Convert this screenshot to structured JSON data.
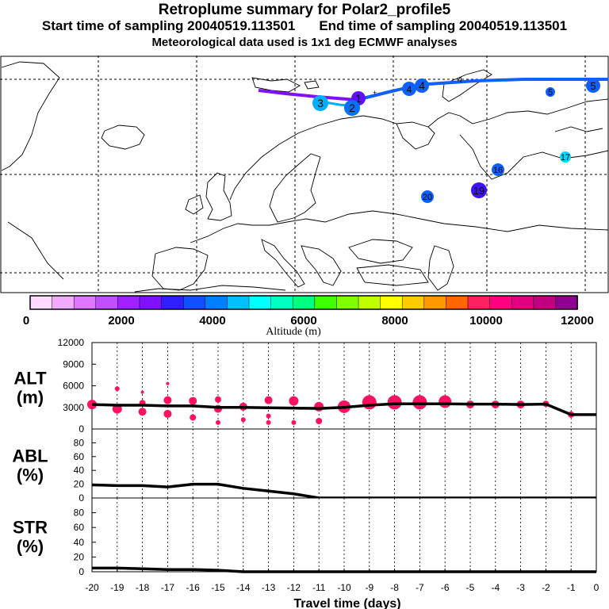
{
  "header": {
    "title": "Retroplume summary for Polar2_profile5",
    "start_label": "Start time of sampling 20040519.113501",
    "end_label": "End time of sampling 20040519.113501",
    "met_label": "Meteorological data used is 1x1 deg ECMWF analyses"
  },
  "map": {
    "region": "Europe and North Atlantic",
    "plume_numbers": [
      "1",
      "2",
      "3",
      "4",
      "4",
      "4",
      "5",
      "5",
      "16",
      "17",
      "19",
      "20"
    ]
  },
  "colorbar": {
    "label": "Altitude (m)",
    "ticks": [
      "0",
      "2000",
      "4000",
      "6000",
      "8000",
      "10000",
      "12000"
    ],
    "colors": [
      "#ffd9ff",
      "#f2aaff",
      "#dd77ff",
      "#c050ff",
      "#a020ff",
      "#8010ff",
      "#3020ff",
      "#1050ff",
      "#0080ff",
      "#00c0ff",
      "#00ffff",
      "#00ffc0",
      "#00ff80",
      "#40ff00",
      "#80ff00",
      "#c0ff00",
      "#ffff00",
      "#ffcc00",
      "#ff9900",
      "#ff6600",
      "#ff2060",
      "#ff0080",
      "#e00080",
      "#c00080",
      "#900090"
    ]
  },
  "chart_data": [
    {
      "type": "line",
      "name": "ALT",
      "ylabel_line1": "ALT",
      "ylabel_line2": "(m)",
      "ylim": [
        0,
        12000
      ],
      "yticks": [
        "0",
        "3000",
        "6000",
        "9000",
        "12000"
      ],
      "x": [
        -20,
        -19,
        -18,
        -17,
        -16,
        -15,
        -14,
        -13,
        -12,
        -11,
        -10,
        -9,
        -8,
        -7,
        -6,
        -5,
        -4,
        -3,
        -2,
        -1,
        0
      ],
      "values": [
        3400,
        3300,
        3300,
        3200,
        3200,
        3000,
        3000,
        2950,
        2900,
        2850,
        3000,
        3300,
        3500,
        3500,
        3500,
        3450,
        3450,
        3400,
        3450,
        2000,
        2000
      ],
      "clusters": [
        {
          "x": -20,
          "y": 3400,
          "s": 6
        },
        {
          "x": -19,
          "y": 2800,
          "s": 6
        },
        {
          "x": -19,
          "y": 5600,
          "s": 3
        },
        {
          "x": -18,
          "y": 2400,
          "s": 5
        },
        {
          "x": -18,
          "y": 3600,
          "s": 4
        },
        {
          "x": -18,
          "y": 5100,
          "s": 2
        },
        {
          "x": -17,
          "y": 2100,
          "s": 5
        },
        {
          "x": -17,
          "y": 4000,
          "s": 5
        },
        {
          "x": -17,
          "y": 6300,
          "s": 2
        },
        {
          "x": -16,
          "y": 1600,
          "s": 4
        },
        {
          "x": -16,
          "y": 3900,
          "s": 5
        },
        {
          "x": -15,
          "y": 900,
          "s": 3
        },
        {
          "x": -15,
          "y": 2800,
          "s": 5
        },
        {
          "x": -15,
          "y": 4100,
          "s": 4
        },
        {
          "x": -14,
          "y": 1300,
          "s": 3
        },
        {
          "x": -14,
          "y": 3100,
          "s": 5
        },
        {
          "x": -13,
          "y": 900,
          "s": 3
        },
        {
          "x": -13,
          "y": 1800,
          "s": 3
        },
        {
          "x": -13,
          "y": 4000,
          "s": 5
        },
        {
          "x": -12,
          "y": 900,
          "s": 3
        },
        {
          "x": -12,
          "y": 3900,
          "s": 6
        },
        {
          "x": -11,
          "y": 1100,
          "s": 4
        },
        {
          "x": -11,
          "y": 3100,
          "s": 6
        },
        {
          "x": -10,
          "y": 3100,
          "s": 8
        },
        {
          "x": -9,
          "y": 3700,
          "s": 9
        },
        {
          "x": -8,
          "y": 3700,
          "s": 9
        },
        {
          "x": -7,
          "y": 3700,
          "s": 9
        },
        {
          "x": -6,
          "y": 3800,
          "s": 8
        },
        {
          "x": -5,
          "y": 3400,
          "s": 5
        },
        {
          "x": -4,
          "y": 3400,
          "s": 5
        },
        {
          "x": -3,
          "y": 3400,
          "s": 5
        },
        {
          "x": -2,
          "y": 3500,
          "s": 4
        },
        {
          "x": -1,
          "y": 2000,
          "s": 4
        }
      ]
    },
    {
      "type": "line",
      "name": "ABL",
      "ylabel_line1": "ABL",
      "ylabel_line2": "(%)",
      "ylim": [
        0,
        100
      ],
      "yticks": [
        "0",
        "20",
        "40",
        "60",
        "80"
      ],
      "x": [
        -20,
        -19,
        -18,
        -17,
        -16,
        -15,
        -14,
        -13,
        -12,
        -11,
        -10,
        -9,
        -8,
        -7,
        -6,
        -5,
        -4,
        -3,
        -2,
        -1,
        0
      ],
      "values": [
        19,
        18,
        18,
        16,
        20,
        20,
        14,
        10,
        6,
        0,
        0,
        0,
        0,
        0,
        0,
        0,
        0,
        0,
        0,
        0,
        0
      ]
    },
    {
      "type": "line",
      "name": "STR",
      "ylabel_line1": "STR",
      "ylabel_line2": "(%)",
      "ylim": [
        0,
        100
      ],
      "yticks": [
        "0",
        "20",
        "40",
        "60",
        "80"
      ],
      "x": [
        -20,
        -19,
        -18,
        -17,
        -16,
        -15,
        -14,
        -13,
        -12,
        -11,
        -10,
        -9,
        -8,
        -7,
        -6,
        -5,
        -4,
        -3,
        -2,
        -1,
        0
      ],
      "values": [
        5,
        5,
        4,
        3,
        3,
        2,
        0,
        0,
        0,
        0,
        0,
        0,
        0,
        0,
        0,
        0,
        0,
        0,
        0,
        0,
        0
      ]
    }
  ],
  "xaxis": {
    "label": "Travel time (days)",
    "ticks": [
      "-20",
      "-19",
      "-18",
      "-17",
      "-16",
      "-15",
      "-14",
      "-13",
      "-12",
      "-11",
      "-10",
      "-9",
      "-8",
      "-7",
      "-6",
      "-5",
      "-4",
      "-3",
      "-2",
      "-1",
      "0"
    ]
  }
}
